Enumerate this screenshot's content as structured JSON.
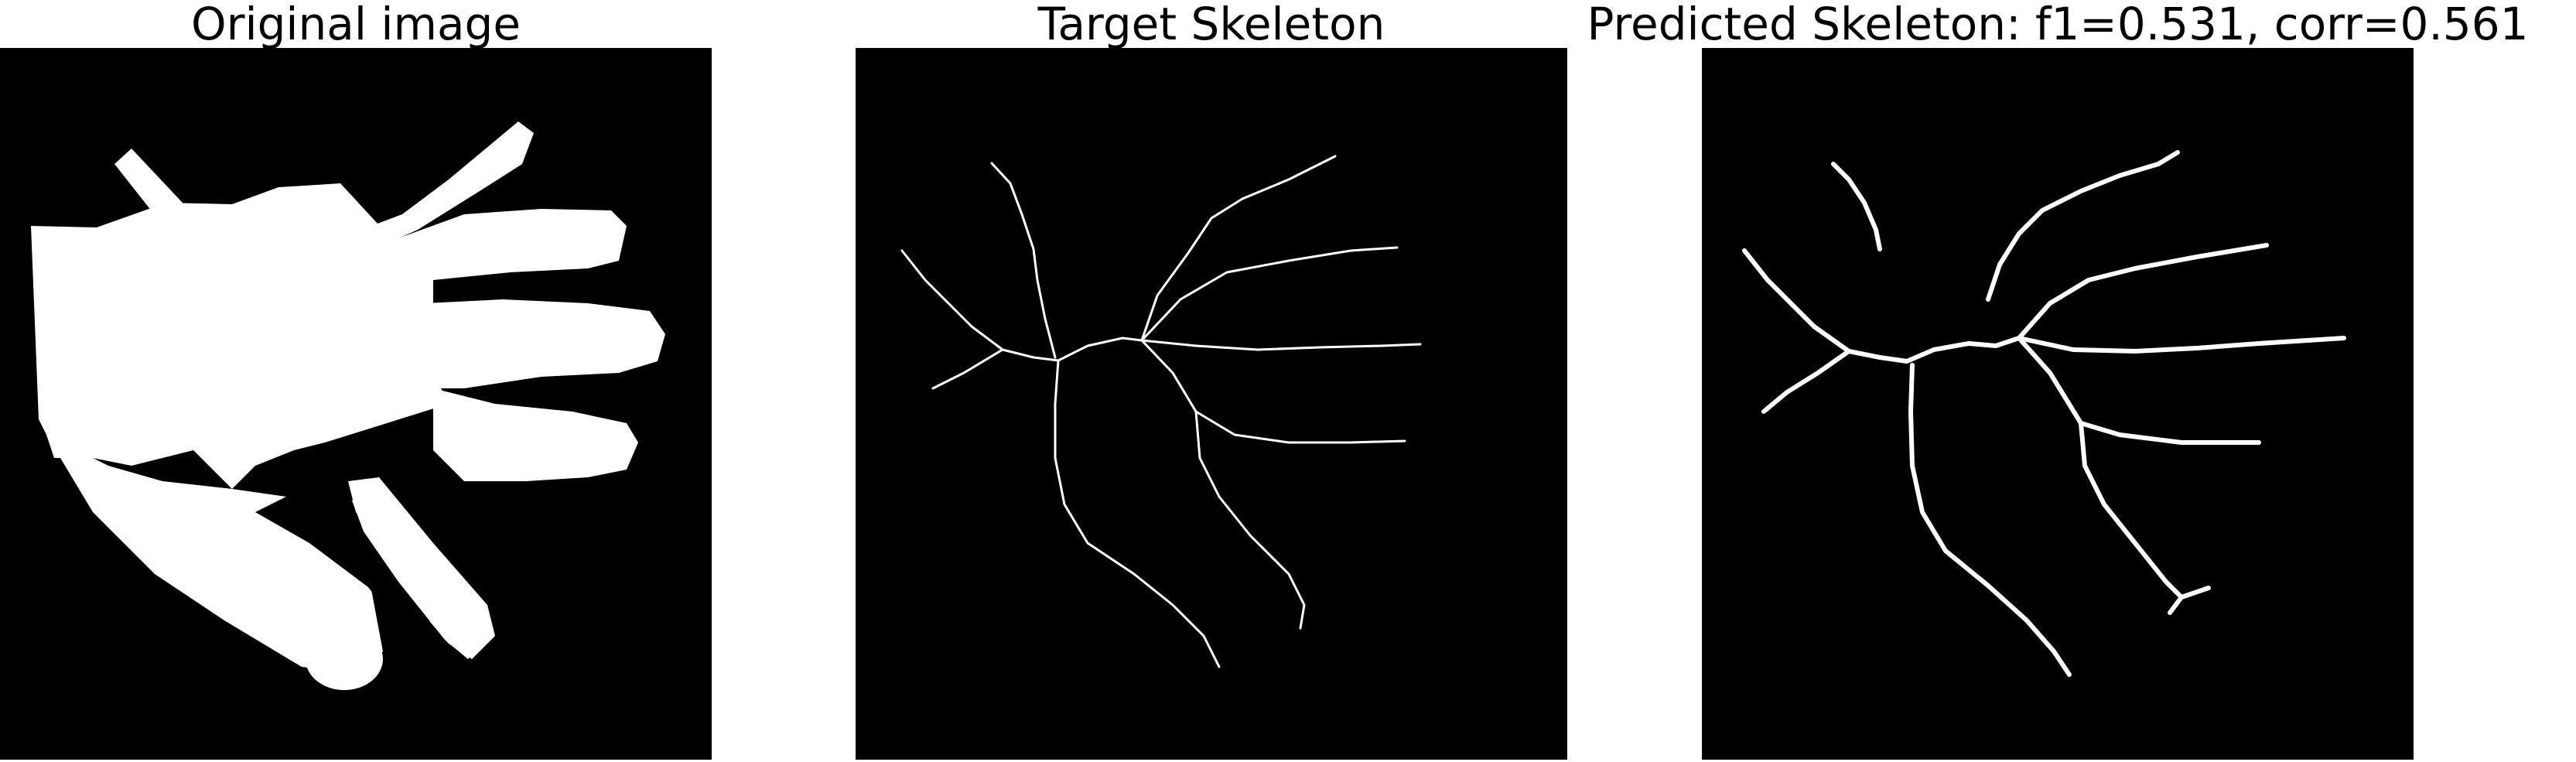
{
  "panels": {
    "original": {
      "title": "Original image"
    },
    "target": {
      "title": "Target Skeleton"
    },
    "predicted": {
      "title": "Predicted Skeleton: f1=0.531, corr=0.561"
    }
  },
  "colors": {
    "background": "#000000",
    "foreground": "#ffffff"
  }
}
